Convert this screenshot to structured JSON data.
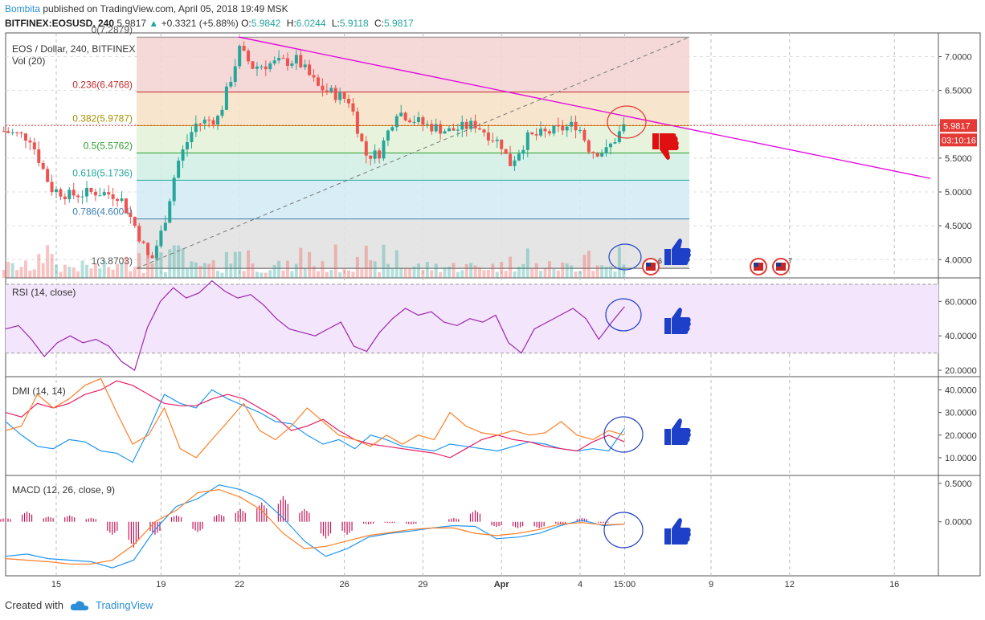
{
  "header": {
    "author": "Bombita",
    "published": "published on TradingView.com, April 05, 2018 19:49 MSK",
    "symbol": "BITFINEX:EOSUSD, 240",
    "price": "5.9817",
    "change": "+0.3321 (+5.88%)",
    "o_label": "O:",
    "o": "5.9842",
    "h_label": "H:",
    "h": "6.0244",
    "l_label": "L:",
    "l": "5.9118",
    "c_label": "C:",
    "c": "5.9817"
  },
  "footer": {
    "created_with": "Created with",
    "brand": "TradingView"
  },
  "colors": {
    "up": "#26a69a",
    "down": "#ef5350",
    "trendline": "#e000e0",
    "rsi": "#9c27b0",
    "rsi_band": "#f3e5fb",
    "dmi_plus": "#2196f3",
    "dmi_minus": "#e91e63",
    "dmi_adx": "#ff7f27",
    "macd": "#2196f3",
    "signal": "#ff7f27",
    "hist": "#c2185b",
    "thumb_up": "#1e40c8",
    "thumb_down": "#e01010"
  },
  "chart_data": [
    {
      "type": "candlestick",
      "title": "EOS / Dollar, 240, BITFINEX",
      "volume_label": "Vol (20)",
      "ylim": [
        3.73,
        7.35
      ],
      "y_ticks": [
        "7.0000",
        "6.5000",
        "6.0000",
        "5.5000",
        "5.0000",
        "4.5000",
        "4.0000"
      ],
      "x_ticks": [
        "15",
        "19",
        "22",
        "26",
        "29",
        "Apr",
        "4",
        "15:00",
        "9",
        "12",
        "16"
      ],
      "last_price": "5.9817",
      "countdown": "03:10:16",
      "fib_levels": [
        {
          "label": "0(7.2879)",
          "value": 7.2879
        },
        {
          "label": "0.236(6.4768)",
          "value": 6.4768
        },
        {
          "label": "0.382(5.9787)",
          "value": 5.9787
        },
        {
          "label": "0.5(5.5762)",
          "value": 5.5762
        },
        {
          "label": "0.618(5.1736)",
          "value": 5.1736
        },
        {
          "label": "0.786(4.6004)",
          "value": 4.6004
        },
        {
          "label": "1(3.8703)",
          "value": 3.8703
        }
      ],
      "events": [
        "6",
        "7"
      ],
      "anchors": [
        {
          "d": "Mar 13",
          "v": 5.9
        },
        {
          "d": "Mar 14",
          "v": 5.8
        },
        {
          "d": "Mar 14.8",
          "v": 5.05
        },
        {
          "d": "Mar 15.5",
          "v": 4.95
        },
        {
          "d": "Mar 16.5",
          "v": 5.0
        },
        {
          "d": "Mar 17.4",
          "v": 4.95
        },
        {
          "d": "Mar 18",
          "v": 4.5
        },
        {
          "d": "Mar 18.6",
          "v": 3.95
        },
        {
          "d": "Mar 19.1",
          "v": 4.5
        },
        {
          "d": "Mar 19.6",
          "v": 5.4
        },
        {
          "d": "Mar 20.3",
          "v": 6.0
        },
        {
          "d": "Mar 21.2",
          "v": 6.1
        },
        {
          "d": "Mar 22",
          "v": 7.1
        },
        {
          "d": "Mar 22.5",
          "v": 6.85
        },
        {
          "d": "Mar 23.3",
          "v": 6.9
        },
        {
          "d": "Mar 24.2",
          "v": 6.95
        },
        {
          "d": "Mar 25",
          "v": 6.55
        },
        {
          "d": "Mar 26.2",
          "v": 6.35
        },
        {
          "d": "Mar 26.8",
          "v": 5.55
        },
        {
          "d": "Mar 27.3",
          "v": 5.55
        },
        {
          "d": "Mar 28",
          "v": 6.2
        },
        {
          "d": "Mar 29",
          "v": 6.0
        },
        {
          "d": "Mar 30",
          "v": 5.9
        },
        {
          "d": "Mar 31",
          "v": 6.0
        },
        {
          "d": "Apr 1",
          "v": 5.7
        },
        {
          "d": "Apr 1.3",
          "v": 5.4
        },
        {
          "d": "Apr 2",
          "v": 5.8
        },
        {
          "d": "Apr 3",
          "v": 5.9
        },
        {
          "d": "Apr 3.9",
          "v": 6.0
        },
        {
          "d": "Apr 4.4",
          "v": 5.6
        },
        {
          "d": "Apr 5",
          "v": 5.6
        },
        {
          "d": "Apr 5.7",
          "v": 5.98
        }
      ]
    },
    {
      "type": "line",
      "title": "RSI (14, close)",
      "ylim": [
        20,
        70
      ],
      "bands": [
        30,
        70
      ],
      "y_ticks": [
        "60.0000",
        "40.0000",
        "20.0000"
      ],
      "series": [
        {
          "values": [
            44,
            46,
            38,
            28,
            36,
            40,
            36,
            38,
            34,
            25,
            20,
            45,
            60,
            68,
            62,
            65,
            72,
            66,
            62,
            64,
            58,
            50,
            44,
            42,
            40,
            44,
            48,
            34,
            31,
            42,
            50,
            56,
            52,
            54,
            48,
            46,
            50,
            48,
            52,
            36,
            30,
            44,
            48,
            52,
            56,
            50,
            38,
            48,
            57
          ]
        }
      ]
    },
    {
      "type": "line",
      "title": "DMI (14, 14)",
      "ylim": [
        5,
        43
      ],
      "y_ticks": [
        "40.0000",
        "30.0000",
        "20.0000",
        "10.0000"
      ],
      "series": [
        {
          "name": "+DI",
          "values": [
            26,
            20,
            15,
            14,
            18,
            17,
            13,
            12,
            8,
            22,
            38,
            34,
            32,
            40,
            36,
            33,
            30,
            26,
            25,
            20,
            16,
            18,
            14,
            20,
            18,
            15,
            14,
            13,
            16,
            15,
            14,
            13,
            15,
            17,
            16,
            14,
            13,
            14,
            13,
            23
          ]
        },
        {
          "name": "-DI",
          "values": [
            30,
            28,
            34,
            32,
            34,
            38,
            40,
            44,
            42,
            38,
            34,
            33,
            33,
            36,
            38,
            36,
            32,
            28,
            22,
            24,
            27,
            22,
            18,
            16,
            15,
            14,
            13,
            12,
            10,
            14,
            18,
            20,
            18,
            17,
            15,
            14,
            13,
            17,
            20,
            17
          ]
        },
        {
          "name": "ADX",
          "values": [
            22,
            24,
            38,
            32,
            36,
            42,
            45,
            30,
            16,
            20,
            32,
            14,
            10,
            18,
            26,
            34,
            22,
            18,
            24,
            32,
            26,
            20,
            18,
            15,
            20,
            16,
            20,
            18,
            30,
            24,
            21,
            20,
            22,
            20,
            21,
            26,
            20,
            18,
            22,
            20
          ]
        }
      ]
    },
    {
      "type": "line",
      "title": "MACD (12, 26, close, 9)",
      "ylim": [
        -0.62,
        0.52
      ],
      "y_ticks": [
        "0.5000",
        "0.0000"
      ],
      "series": [
        {
          "name": "MACD",
          "values": [
            -0.45,
            -0.42,
            -0.48,
            -0.5,
            -0.52,
            -0.6,
            -0.5,
            -0.1,
            0.2,
            0.3,
            0.48,
            0.42,
            0.3,
            0.05,
            -0.25,
            -0.45,
            -0.35,
            -0.2,
            -0.15,
            -0.12,
            -0.08,
            -0.05,
            -0.06,
            -0.22,
            -0.2,
            -0.15,
            -0.05,
            0.02,
            -0.05,
            -0.03
          ]
        },
        {
          "name": "Signal",
          "values": [
            -0.48,
            -0.5,
            -0.52,
            -0.55,
            -0.55,
            -0.5,
            -0.3,
            0.0,
            0.15,
            0.38,
            0.42,
            0.32,
            0.15,
            -0.15,
            -0.35,
            -0.32,
            -0.25,
            -0.18,
            -0.14,
            -0.1,
            -0.08,
            -0.08,
            -0.15,
            -0.18,
            -0.15,
            -0.1,
            -0.03,
            -0.01,
            -0.04,
            -0.03
          ]
        }
      ]
    }
  ]
}
